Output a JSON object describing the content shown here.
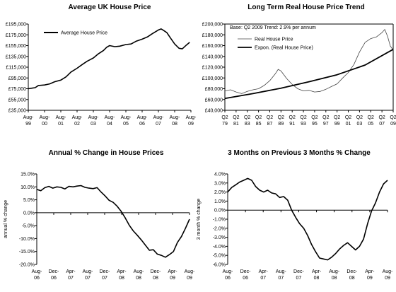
{
  "chart_data": [
    {
      "type": "line",
      "title": "Average UK House Price",
      "ylabel": "",
      "ylim": [
        35000,
        195000
      ],
      "yticks": [
        "£35,000",
        "£55,000",
        "£75,000",
        "£95,000",
        "£115,000",
        "£135,000",
        "£155,000",
        "£175,000",
        "£195,000"
      ],
      "xticks": [
        [
          "Aug-",
          "99"
        ],
        [
          "Aug-",
          "00"
        ],
        [
          "Aug-",
          "01"
        ],
        [
          "Aug-",
          "02"
        ],
        [
          "Aug-",
          "03"
        ],
        [
          "Aug-",
          "04"
        ],
        [
          "Aug-",
          "05"
        ],
        [
          "Aug-",
          "06"
        ],
        [
          "Aug-",
          "07"
        ],
        [
          "Aug-",
          "08"
        ],
        [
          "Aug-",
          "09"
        ]
      ],
      "xlim": [
        1999.58,
        2009.58
      ],
      "legend": "top-left",
      "series": [
        {
          "name": "Average House Price",
          "color": "#000000",
          "points": [
            [
              1999.58,
              75000
            ],
            [
              1999.8,
              76000
            ],
            [
              2000.0,
              77000
            ],
            [
              2000.2,
              81000
            ],
            [
              2000.58,
              82000
            ],
            [
              2000.9,
              84000
            ],
            [
              2001.2,
              88000
            ],
            [
              2001.58,
              91000
            ],
            [
              2001.9,
              97000
            ],
            [
              2002.2,
              106000
            ],
            [
              2002.58,
              113000
            ],
            [
              2002.9,
              120000
            ],
            [
              2003.2,
              126000
            ],
            [
              2003.58,
              132000
            ],
            [
              2003.9,
              140000
            ],
            [
              2004.2,
              146000
            ],
            [
              2004.4,
              152000
            ],
            [
              2004.58,
              155000
            ],
            [
              2004.9,
              153000
            ],
            [
              2005.2,
              154000
            ],
            [
              2005.58,
              157000
            ],
            [
              2005.9,
              158000
            ],
            [
              2006.2,
              163000
            ],
            [
              2006.58,
              167000
            ],
            [
              2006.9,
              171000
            ],
            [
              2007.2,
              177000
            ],
            [
              2007.58,
              184000
            ],
            [
              2007.75,
              186000
            ],
            [
              2007.9,
              183000
            ],
            [
              2008.1,
              179000
            ],
            [
              2008.3,
              170000
            ],
            [
              2008.58,
              158000
            ],
            [
              2008.85,
              150000
            ],
            [
              2009.05,
              149000
            ],
            [
              2009.3,
              156000
            ],
            [
              2009.5,
              161000
            ]
          ]
        }
      ]
    },
    {
      "type": "line",
      "title": "Long Term Real House Price Trend",
      "subtitle": "Base: Q2 2009 Trend: 2.9% per annum",
      "ylabel": "",
      "ylim": [
        40000,
        200000
      ],
      "yticks": [
        "£40,000",
        "£60,000",
        "£80,000",
        "£100,000",
        "£120,000",
        "£140,000",
        "£160,000",
        "£180,000",
        "£200,000"
      ],
      "xticks": [
        [
          "Q2",
          "79"
        ],
        [
          "Q2",
          "81"
        ],
        [
          "Q2",
          "83"
        ],
        [
          "Q2",
          "85"
        ],
        [
          "Q2",
          "87"
        ],
        [
          "Q2",
          "89"
        ],
        [
          "Q2",
          "91"
        ],
        [
          "Q2",
          "93"
        ],
        [
          "Q2",
          "95"
        ],
        [
          "Q2",
          "97"
        ],
        [
          "Q2",
          "99"
        ],
        [
          "Q2",
          "01"
        ],
        [
          "Q2",
          "03"
        ],
        [
          "Q2",
          "05"
        ],
        [
          "Q2",
          "07"
        ],
        [
          "Q2",
          "09"
        ]
      ],
      "xlim": [
        1979.3,
        2009.3
      ],
      "legend": "top-left",
      "series": [
        {
          "name": "Real House Price",
          "color": "#444444",
          "width": 0.8,
          "points": [
            [
              1979.3,
              76000
            ],
            [
              1980.3,
              78000
            ],
            [
              1981.3,
              74000
            ],
            [
              1982.3,
              71000
            ],
            [
              1983.3,
              75000
            ],
            [
              1984.3,
              78000
            ],
            [
              1985.3,
              80000
            ],
            [
              1986.3,
              86000
            ],
            [
              1987.3,
              95000
            ],
            [
              1988.3,
              108000
            ],
            [
              1988.8,
              116000
            ],
            [
              1989.3,
              113000
            ],
            [
              1990.3,
              99000
            ],
            [
              1991.3,
              88000
            ],
            [
              1992.3,
              80000
            ],
            [
              1993.3,
              76000
            ],
            [
              1994.3,
              77000
            ],
            [
              1995.3,
              74000
            ],
            [
              1996.3,
              75000
            ],
            [
              1997.3,
              79000
            ],
            [
              1998.3,
              84000
            ],
            [
              1999.3,
              89000
            ],
            [
              2000.3,
              100000
            ],
            [
              2001.3,
              110000
            ],
            [
              2002.3,
              125000
            ],
            [
              2003.3,
              148000
            ],
            [
              2004.3,
              166000
            ],
            [
              2005.3,
              173000
            ],
            [
              2006.3,
              176000
            ],
            [
              2007.3,
              184000
            ],
            [
              2007.8,
              190000
            ],
            [
              2008.3,
              177000
            ],
            [
              2008.8,
              159000
            ],
            [
              2009.3,
              152000
            ]
          ]
        },
        {
          "name": "Expon. (Real House Price)",
          "color": "#000000",
          "width": 1.8,
          "points": [
            [
              1979.3,
              62000
            ],
            [
              1984.3,
              71000
            ],
            [
              1989.3,
              81000
            ],
            [
              1994.3,
              93000
            ],
            [
              1999.3,
              106000
            ],
            [
              2004.3,
              124000
            ],
            [
              2009.3,
              153000
            ]
          ]
        }
      ]
    },
    {
      "type": "line",
      "title": "Annual % Change in House Prices",
      "ylabel": "annual % change",
      "ylim": [
        -20,
        15
      ],
      "yticks": [
        "-20.0%",
        "-15.0%",
        "-10.0%",
        "-5.0%",
        "0.0%",
        "5.0%",
        "10.0%",
        "15.0%"
      ],
      "xticks": [
        [
          "Aug-",
          "06"
        ],
        [
          "Dec-",
          "06"
        ],
        [
          "Apr-",
          "07"
        ],
        [
          "Aug-",
          "07"
        ],
        [
          "Dec-",
          "07"
        ],
        [
          "Apr-",
          "08"
        ],
        [
          "Aug-",
          "08"
        ],
        [
          "Dec-",
          "08"
        ],
        [
          "Apr-",
          "09"
        ],
        [
          "Aug-",
          "09"
        ]
      ],
      "xlim": [
        0,
        36
      ],
      "series": [
        {
          "name": "",
          "color": "#000000",
          "values": [
            9.0,
            8.5,
            9.7,
            10.2,
            9.5,
            10.0,
            9.8,
            9.2,
            10.2,
            10.0,
            10.3,
            10.5,
            9.8,
            9.5,
            9.3,
            9.7,
            8.0,
            6.5,
            4.8,
            4.0,
            2.5,
            0.5,
            -2.0,
            -4.8,
            -7.0,
            -8.7,
            -10.5,
            -12.5,
            -14.5,
            -14.3,
            -16.0,
            -16.5,
            -17.2,
            -16.2,
            -15.0,
            -11.5,
            -9.2,
            -6.0,
            -2.5
          ]
        }
      ]
    },
    {
      "type": "line",
      "title": "3 Months on Previous 3 Months % Change",
      "ylabel": "3 month % change",
      "ylim": [
        -6,
        4
      ],
      "yticks": [
        "-6.0%",
        "-5.0%",
        "-4.0%",
        "-3.0%",
        "-2.0%",
        "-1.0%",
        "0.0%",
        "1.0%",
        "2.0%",
        "3.0%",
        "4.0%"
      ],
      "xticks": [
        [
          "Aug-",
          "06"
        ],
        [
          "Dec-",
          "06"
        ],
        [
          "Apr-",
          "07"
        ],
        [
          "Aug-",
          "07"
        ],
        [
          "Dec-",
          "07"
        ],
        [
          "Apr-",
          "08"
        ],
        [
          "Aug-",
          "08"
        ],
        [
          "Dec-",
          "08"
        ],
        [
          "Apr-",
          "09"
        ],
        [
          "Aug-",
          "09"
        ]
      ],
      "xlim": [
        0,
        36
      ],
      "series": [
        {
          "name": "",
          "color": "#000000",
          "values": [
            2.0,
            2.5,
            2.8,
            3.1,
            3.3,
            3.5,
            3.3,
            2.6,
            2.2,
            2.0,
            2.2,
            1.9,
            1.8,
            1.4,
            1.5,
            1.1,
            0.0,
            -0.8,
            -1.5,
            -2.0,
            -2.8,
            -3.8,
            -4.6,
            -5.3,
            -5.4,
            -5.5,
            -5.2,
            -4.8,
            -4.3,
            -3.9,
            -3.6,
            -4.0,
            -4.4,
            -4.0,
            -3.2,
            -1.5,
            -0.1,
            0.8,
            2.0,
            2.9,
            3.3
          ]
        }
      ]
    }
  ]
}
